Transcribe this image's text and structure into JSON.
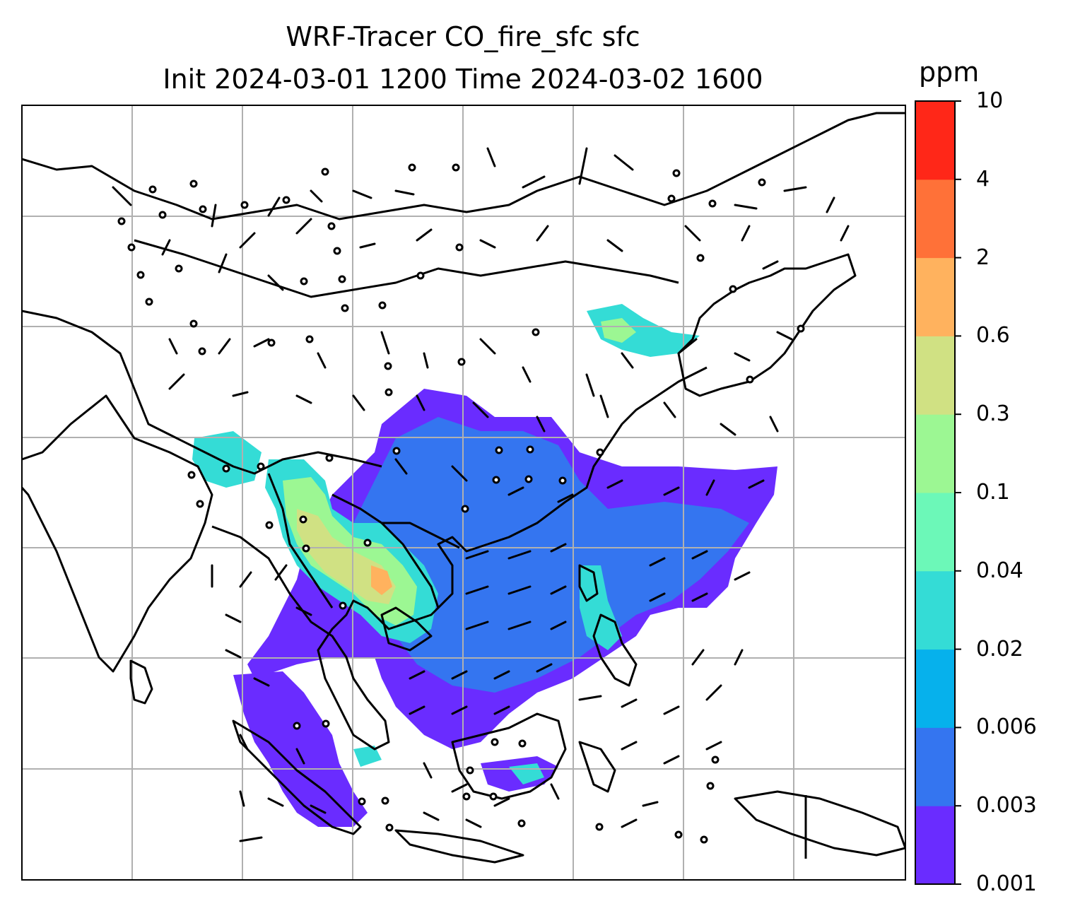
{
  "title": {
    "line1": "WRF-Tracer CO_fire_sfc sfc",
    "line2": "Init 2024-03-01 1200 Time 2024-03-02 1600"
  },
  "colorbar": {
    "unit": "ppm",
    "levels": [
      "0.001",
      "0.003",
      "0.006",
      "0.02",
      "0.04",
      "0.1",
      "0.3",
      "0.6",
      "2",
      "4",
      "10"
    ],
    "colors": [
      "#6a2cff",
      "#3475f0",
      "#06b1ec",
      "#34dcd6",
      "#6cf8b8",
      "#9cf793",
      "#d0e183",
      "#ffb25e",
      "#ff7138",
      "#ff2718"
    ]
  },
  "map": {
    "projection": "Lambert conformal, South/Southeast/East Asia",
    "gridlines": true,
    "wind_barbs": true,
    "plume_regions": [
      "Indochina / Myanmar / Thailand / Laos",
      "South China",
      "Philippines",
      "Northeast China / Korea",
      "Sumatra / Borneo",
      "Java"
    ]
  }
}
